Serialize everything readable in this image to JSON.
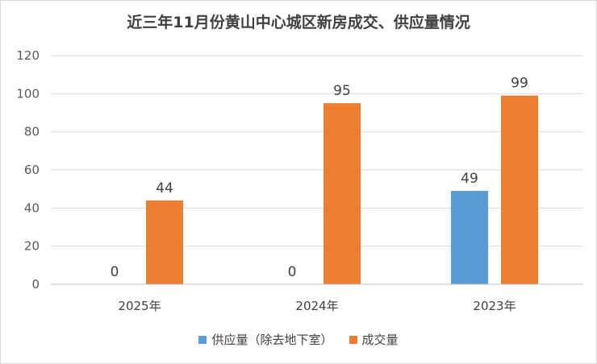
{
  "chart_data": {
    "type": "bar",
    "title": "近三年11月份黄山中心城区新房成交、供应量情况",
    "categories": [
      "2025年",
      "2024年",
      "2023年"
    ],
    "series": [
      {
        "name": "供应量（除去地下室）",
        "values": [
          0,
          0,
          49
        ],
        "color": "#5b9bd5"
      },
      {
        "name": "成交量",
        "values": [
          44,
          95,
          99
        ],
        "color": "#ed7d31"
      }
    ],
    "ylim": [
      0,
      120
    ],
    "yticks": [
      0,
      20,
      40,
      60,
      80,
      100,
      120
    ],
    "grid": true,
    "legend": "bottom"
  }
}
